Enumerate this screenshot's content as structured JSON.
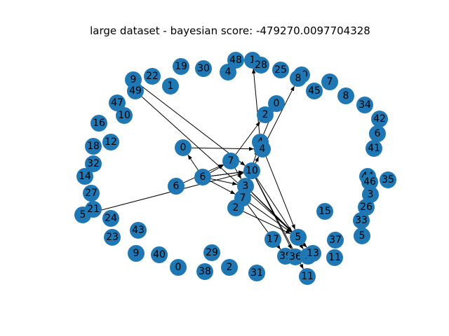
{
  "figure": {
    "title": "large dataset - bayesian score: -479270.0097704328"
  },
  "graph": {
    "nodes": [
      {
        "id": "n48",
        "label": "48"
      },
      {
        "id": "n1a",
        "label": "1"
      },
      {
        "id": "n28",
        "label": "28"
      },
      {
        "id": "n4a",
        "label": "4"
      },
      {
        "id": "n30",
        "label": "30"
      },
      {
        "id": "n19",
        "label": "19"
      },
      {
        "id": "n25",
        "label": "25"
      },
      {
        "id": "n20",
        "label": "20"
      },
      {
        "id": "n8a",
        "label": "8"
      },
      {
        "id": "n7a",
        "label": "7"
      },
      {
        "id": "n45",
        "label": "45"
      },
      {
        "id": "n8b",
        "label": "8"
      },
      {
        "id": "n34",
        "label": "34"
      },
      {
        "id": "n42",
        "label": "42"
      },
      {
        "id": "n6a",
        "label": "6"
      },
      {
        "id": "n41",
        "label": "41"
      },
      {
        "id": "n22",
        "label": "22"
      },
      {
        "id": "n9a",
        "label": "9"
      },
      {
        "id": "n49",
        "label": "49"
      },
      {
        "id": "n1b",
        "label": "1"
      },
      {
        "id": "n47",
        "label": "47"
      },
      {
        "id": "n10a",
        "label": "10"
      },
      {
        "id": "n16",
        "label": "16"
      },
      {
        "id": "n18",
        "label": "18"
      },
      {
        "id": "n12",
        "label": "12"
      },
      {
        "id": "n32",
        "label": "32"
      },
      {
        "id": "n14",
        "label": "14"
      },
      {
        "id": "n27",
        "label": "27"
      },
      {
        "id": "n5a",
        "label": "5"
      },
      {
        "id": "n21",
        "label": "21"
      },
      {
        "id": "n24",
        "label": "24"
      },
      {
        "id": "n23",
        "label": "23"
      },
      {
        "id": "n43",
        "label": "43"
      },
      {
        "id": "n9b",
        "label": "9"
      },
      {
        "id": "n40",
        "label": "40"
      },
      {
        "id": "n0a",
        "label": "0"
      },
      {
        "id": "n38",
        "label": "38"
      },
      {
        "id": "n29",
        "label": "29"
      },
      {
        "id": "n2a",
        "label": "2"
      },
      {
        "id": "n31",
        "label": "31"
      },
      {
        "id": "n0b",
        "label": "0"
      },
      {
        "id": "n2b",
        "label": "2"
      },
      {
        "id": "n0c",
        "label": "0"
      },
      {
        "id": "n4b",
        "label": "4"
      },
      {
        "id": "n4c",
        "label": "4"
      },
      {
        "id": "n7b",
        "label": "7"
      },
      {
        "id": "n10b",
        "label": "10"
      },
      {
        "id": "n6b",
        "label": "6"
      },
      {
        "id": "n6c",
        "label": "6"
      },
      {
        "id": "n3a",
        "label": "3"
      },
      {
        "id": "n7c",
        "label": "7"
      },
      {
        "id": "n2c",
        "label": "2"
      },
      {
        "id": "n17",
        "label": "17"
      },
      {
        "id": "n5b",
        "label": "5"
      },
      {
        "id": "n39",
        "label": "39"
      },
      {
        "id": "n36",
        "label": "36"
      },
      {
        "id": "n3b",
        "label": "3"
      },
      {
        "id": "n13",
        "label": "13"
      },
      {
        "id": "n37",
        "label": "37"
      },
      {
        "id": "n11a",
        "label": "11"
      },
      {
        "id": "n11b",
        "label": "11"
      },
      {
        "id": "n15",
        "label": "15"
      },
      {
        "id": "n44",
        "label": "44"
      },
      {
        "id": "n46",
        "label": "46"
      },
      {
        "id": "n35",
        "label": "35"
      },
      {
        "id": "n3c",
        "label": "3"
      },
      {
        "id": "n26",
        "label": "26"
      },
      {
        "id": "n33",
        "label": "33"
      },
      {
        "id": "n5c",
        "label": "5"
      }
    ],
    "edges": [
      {
        "from": "n9a",
        "to": "n10b"
      },
      {
        "from": "n49",
        "to": "n5b"
      },
      {
        "from": "n0c",
        "to": "n4c"
      },
      {
        "from": "n6c",
        "to": "n7b"
      },
      {
        "from": "n6c",
        "to": "n0c"
      },
      {
        "from": "n6c",
        "to": "n3a"
      },
      {
        "from": "n6c",
        "to": "n7c"
      },
      {
        "from": "n6c",
        "to": "n10b"
      },
      {
        "from": "n6b",
        "to": "n7b"
      },
      {
        "from": "n5a",
        "to": "n10b"
      },
      {
        "from": "n7b",
        "to": "n2b"
      },
      {
        "from": "n4b",
        "to": "n1a"
      },
      {
        "from": "n4b",
        "to": "n0b"
      },
      {
        "from": "n4c",
        "to": "n8a"
      },
      {
        "from": "n4b",
        "to": "n5b"
      },
      {
        "from": "n10b",
        "to": "n4c"
      },
      {
        "from": "n10b",
        "to": "n36"
      },
      {
        "from": "n10b",
        "to": "n11b"
      },
      {
        "from": "n10b",
        "to": "n3b"
      },
      {
        "from": "n3a",
        "to": "n5b"
      },
      {
        "from": "n3a",
        "to": "n4b"
      },
      {
        "from": "n3a",
        "to": "n13"
      },
      {
        "from": "n7c",
        "to": "n5b"
      },
      {
        "from": "n7c",
        "to": "n39"
      },
      {
        "from": "n2c",
        "to": "n5b"
      },
      {
        "from": "n7b",
        "to": "n3a"
      },
      {
        "from": "n6c",
        "to": "n10b"
      }
    ]
  }
}
